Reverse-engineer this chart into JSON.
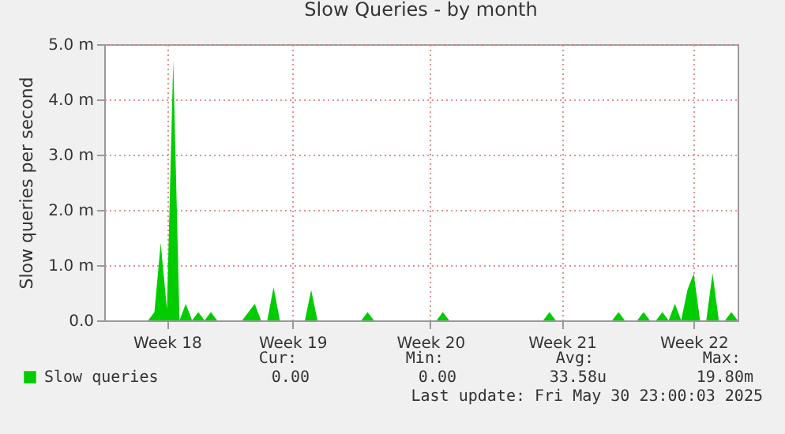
{
  "chart_data": {
    "type": "area",
    "title": "Slow Queries - by month",
    "ylabel": "Slow queries per second",
    "categories": [
      null,
      null,
      null,
      null,
      null,
      null,
      null,
      null,
      null,
      null,
      "Week 18",
      null,
      null,
      null,
      null,
      null,
      null,
      null,
      null,
      null,
      null,
      null,
      null,
      null,
      null,
      null,
      null,
      null,
      null,
      null,
      "Week 19",
      null,
      null,
      null,
      null,
      null,
      null,
      null,
      null,
      null,
      null,
      null,
      null,
      null,
      null,
      null,
      null,
      null,
      null,
      null,
      null,
      null,
      "Week 20",
      null,
      null,
      null,
      null,
      null,
      null,
      null,
      null,
      null,
      null,
      null,
      null,
      null,
      null,
      null,
      null,
      null,
      null,
      null,
      null,
      "Week 21",
      null,
      null,
      null,
      null,
      null,
      null,
      null,
      null,
      null,
      null,
      null,
      null,
      null,
      null,
      null,
      null,
      null,
      null,
      null,
      null,
      "Week 22",
      null,
      null,
      null,
      null,
      null,
      null,
      null
    ],
    "series": [
      {
        "name": "Slow queries",
        "color": "#00cc00",
        "values": [
          0,
          0,
          0,
          0,
          0,
          0,
          0,
          0,
          0.15,
          1.4,
          0.2,
          4.7,
          0,
          0.3,
          0,
          0.15,
          0,
          0.15,
          0,
          0,
          0,
          0,
          0,
          0.15,
          0.3,
          0,
          0,
          0.6,
          0,
          0,
          0,
          0,
          0,
          0.55,
          0,
          0,
          0,
          0,
          0,
          0,
          0,
          0,
          0.15,
          0,
          0,
          0,
          0,
          0,
          0,
          0,
          0,
          0,
          0,
          0,
          0.15,
          0,
          0,
          0,
          0,
          0,
          0,
          0,
          0,
          0,
          0,
          0,
          0,
          0,
          0,
          0,
          0,
          0.15,
          0,
          0,
          0,
          0,
          0,
          0,
          0,
          0,
          0,
          0,
          0.15,
          0,
          0,
          0,
          0.15,
          0,
          0,
          0.15,
          0,
          0.3,
          0,
          0.55,
          0.85,
          0,
          0,
          0.85,
          0,
          0,
          0.15,
          0
        ]
      }
    ],
    "ylim": [
      0,
      5
    ],
    "yticks": [
      {
        "value": 0,
        "label": "0.0"
      },
      {
        "value": 1,
        "label": "1.0 m"
      },
      {
        "value": 2,
        "label": "2.0 m"
      },
      {
        "value": 3,
        "label": "3.0 m"
      },
      {
        "value": 4,
        "label": "4.0 m"
      },
      {
        "value": 5,
        "label": "5.0 m"
      }
    ],
    "grid": true,
    "legend": "bottom left",
    "annotations": [
      "Cur:",
      "0.00",
      "Min:",
      "0.00",
      "Avg:",
      "33.58u",
      "Max:",
      "19.80m",
      "Last update: Fri May 30 23:00:03 2025"
    ]
  }
}
